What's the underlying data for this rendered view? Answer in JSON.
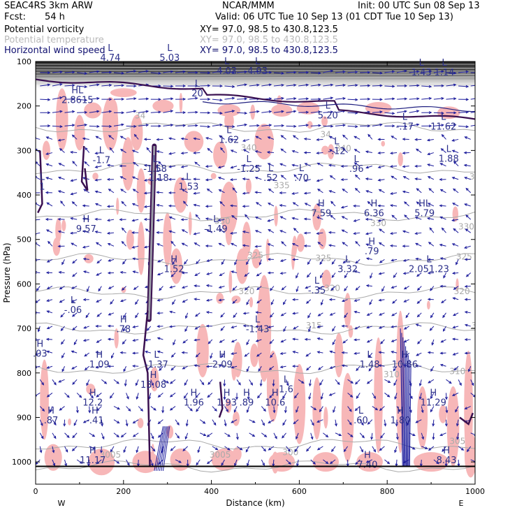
{
  "header": {
    "model": "SEAC4RS  3km ARW",
    "org": "NCAR/MMM",
    "init": "Init: 00 UTC Sun 08 Sep 13",
    "fcst_label": "Fcst:",
    "fcst_value": "54 h",
    "valid": "Valid: 06 UTC Tue 10 Sep 13 (01 CDT Tue 10 Sep 13)",
    "fields": [
      {
        "name": "Potential vorticity",
        "xy": "XY=  97.0, 98.5 to 430.8,123.5",
        "color": "#000000"
      },
      {
        "name": "Potential temperature",
        "xy": "XY=  97.0, 98.5 to 430.8,123.5",
        "color": "#b9b9b9"
      },
      {
        "name": "Horizontal wind speed",
        "xy": "XY=  97.0, 98.5 to 430.8,123.5",
        "color": "#101070"
      }
    ]
  },
  "chart_data": {
    "type": "heatmap",
    "title": "",
    "xlabel": "Distance (km)",
    "ylabel": "Pressure (hPa)",
    "xlim": [
      0,
      1000
    ],
    "ylim": [
      1050,
      100
    ],
    "x_ticks": [
      "0",
      "200",
      "400",
      "600",
      "800",
      "1000"
    ],
    "y_ticks": [
      "100",
      "200",
      "300",
      "400",
      "500",
      "600",
      "700",
      "800",
      "900",
      "1000"
    ],
    "x_ticks_values": [
      0,
      200,
      400,
      600,
      800,
      1000
    ],
    "y_ticks_values": [
      100,
      200,
      300,
      400,
      500,
      600,
      700,
      800,
      900,
      1000
    ],
    "x_end_labels": [
      "W",
      "E"
    ],
    "theta_contours": [
      {
        "label": "340",
        "p": 248
      },
      {
        "label": "335",
        "p": 340
      },
      {
        "label": "330",
        "p": 445
      },
      {
        "label": "325",
        "p": 545
      },
      {
        "label": "320",
        "p": 620
      },
      {
        "label": "315",
        "p": 700
      },
      {
        "label": "310",
        "p": 790
      },
      {
        "label": "305",
        "p": 960
      },
      {
        "label": "300",
        "p": 1010
      }
    ],
    "theta_labels": [
      {
        "text": "34",
        "x": 238,
        "p": 228
      },
      {
        "text": "34",
        "x": 660,
        "p": 270
      },
      {
        "text": "340",
        "x": 485,
        "p": 300
      },
      {
        "text": "340",
        "x": 700,
        "p": 302
      },
      {
        "text": "335",
        "x": 560,
        "p": 385
      },
      {
        "text": "335",
        "x": 1005,
        "p": 365
      },
      {
        "text": "330",
        "x": 425,
        "p": 465
      },
      {
        "text": "330",
        "x": 780,
        "p": 470
      },
      {
        "text": "330",
        "x": 980,
        "p": 478
      },
      {
        "text": "325",
        "x": 500,
        "p": 542
      },
      {
        "text": "325",
        "x": 655,
        "p": 548
      },
      {
        "text": "325",
        "x": 975,
        "p": 545
      },
      {
        "text": "320",
        "x": 480,
        "p": 623
      },
      {
        "text": "320",
        "x": 675,
        "p": 616
      },
      {
        "text": "320",
        "x": 970,
        "p": 623
      },
      {
        "text": "315",
        "x": 633,
        "p": 700
      },
      {
        "text": "315",
        "x": 1010,
        "p": 700
      },
      {
        "text": "310",
        "x": 960,
        "p": 803
      },
      {
        "text": "310",
        "x": 810,
        "p": 810
      },
      {
        "text": "305",
        "x": 960,
        "p": 960
      },
      {
        "text": "3005",
        "x": 170,
        "p": 990
      },
      {
        "text": "3005",
        "x": 420,
        "p": 990
      },
      {
        "text": "300",
        "x": 580,
        "p": 985
      }
    ],
    "extrema": [
      {
        "type": "L",
        "value": "4.74",
        "x": 170,
        "p": 95
      },
      {
        "type": "L",
        "value": "5.03",
        "x": 305,
        "p": 95
      },
      {
        "type": "L",
        "value": "4.03",
        "x": 435,
        "p": 125
      },
      {
        "type": "L",
        "value": "4.93",
        "x": 505,
        "p": 125
      },
      {
        "type": "L",
        "value": "1.43",
        "x": 878,
        "p": 128
      },
      {
        "type": "L",
        "value": "1.14",
        "x": 930,
        "p": 128
      },
      {
        "type": "HL",
        "value": "2.8615",
        "x": 95,
        "p": 190
      },
      {
        "type": "L",
        "value": "20",
        "x": 368,
        "p": 175
      },
      {
        "type": "L",
        "value": "5.20",
        "x": 665,
        "p": 225
      },
      {
        "type": "L",
        "value": "-.17",
        "x": 840,
        "p": 250
      },
      {
        "type": "L",
        "value": "11.62",
        "x": 928,
        "p": 250
      },
      {
        "type": "L",
        "value": "1.62",
        "x": 440,
        "p": 280
      },
      {
        "type": "L",
        "value": "-1.7",
        "x": 150,
        "p": 325
      },
      {
        "type": "L",
        "value": "-.12",
        "x": 685,
        "p": 305
      },
      {
        "type": "L",
        "value": "1.88",
        "x": 940,
        "p": 322
      },
      {
        "type": "L",
        "value": "-1.58",
        "x": 272,
        "p": 345
      },
      {
        "type": "L",
        "value": "-1.25",
        "x": 485,
        "p": 345
      },
      {
        "type": "L",
        "value": ".96",
        "x": 730,
        "p": 345
      },
      {
        "type": "L",
        "value": "1.53",
        "x": 348,
        "p": 385
      },
      {
        "type": "L",
        "value": ".52",
        "x": 535,
        "p": 365
      },
      {
        "type": "L",
        "value": ".70",
        "x": 605,
        "p": 365
      },
      {
        "type": "L",
        "value": "1.18",
        "x": 280,
        "p": 365
      },
      {
        "type": "H",
        "value": "9.57",
        "x": 115,
        "p": 480
      },
      {
        "type": "L",
        "value": "-1.49",
        "x": 410,
        "p": 480
      },
      {
        "type": "H",
        "value": "7.59",
        "x": 650,
        "p": 445
      },
      {
        "type": "H",
        "value": "6.36",
        "x": 770,
        "p": 445
      },
      {
        "type": "HL",
        "value": "5.79",
        "x": 885,
        "p": 445
      },
      {
        "type": "H",
        "value": ".79",
        "x": 765,
        "p": 530
      },
      {
        "type": "L",
        "value": "3.32",
        "x": 710,
        "p": 570
      },
      {
        "type": "L",
        "value": "2.051.23",
        "x": 895,
        "p": 570
      },
      {
        "type": "H",
        "value": "1.52",
        "x": 315,
        "p": 570
      },
      {
        "type": "L",
        "value": "-.35",
        "x": 640,
        "p": 618
      },
      {
        "type": "L",
        "value": "-.06",
        "x": 85,
        "p": 662
      },
      {
        "type": "H",
        "value": ".78",
        "x": 200,
        "p": 705
      },
      {
        "type": "L",
        "value": "-1.43",
        "x": 505,
        "p": 705
      },
      {
        "type": "H",
        "value": "1.09",
        "x": 145,
        "p": 785
      },
      {
        "type": "L",
        "value": "-1.37",
        "x": 275,
        "p": 785
      },
      {
        "type": "H",
        "value": "2.09",
        "x": 425,
        "p": 785
      },
      {
        "type": "L",
        "value": "1.48",
        "x": 760,
        "p": 785
      },
      {
        "type": "H",
        "value": "10.86",
        "x": 840,
        "p": 785
      },
      {
        "type": "H",
        "value": "13.08",
        "x": 268,
        "p": 830
      },
      {
        "type": "L",
        "value": "1.6",
        "x": 570,
        "p": 840
      },
      {
        "type": "H",
        "value": "12.2",
        "x": 130,
        "p": 870
      },
      {
        "type": "H",
        "value": "1.96",
        "x": 360,
        "p": 870
      },
      {
        "type": "H",
        "value": "1.93",
        "x": 435,
        "p": 870
      },
      {
        "type": "H",
        "value": ".89",
        "x": 480,
        "p": 870
      },
      {
        "type": "H",
        "value": "10.6",
        "x": 545,
        "p": 870
      },
      {
        "type": "H",
        "value": "11.29",
        "x": 905,
        "p": 870
      },
      {
        "type": "H",
        "value": "-.41",
        "x": 135,
        "p": 910
      },
      {
        "type": "H",
        "value": ".87",
        "x": 35,
        "p": 910
      },
      {
        "type": "L",
        "value": ".60",
        "x": 740,
        "p": 910
      },
      {
        "type": "H",
        "value": "1.80",
        "x": 830,
        "p": 910
      },
      {
        "type": "H",
        "value": "11.17",
        "x": 130,
        "p": 1000
      },
      {
        "type": "H",
        "value": "7.40",
        "x": 755,
        "p": 1010
      },
      {
        "type": "H",
        "value": "8.43",
        "x": 935,
        "p": 1000
      },
      {
        "type": "H",
        "value": ".03",
        "x": 10,
        "p": 760
      },
      {
        "type": "L",
        "value": "1",
        "x": 15,
        "p": 385
      }
    ],
    "grid": false,
    "legend": "none",
    "colors": {
      "pv_line": "#3a1050",
      "wind_arrow": "#1c1c9c",
      "shading": "#f7b7b8",
      "theta": "#aaaaaa",
      "trop_blue": "#202080"
    }
  }
}
